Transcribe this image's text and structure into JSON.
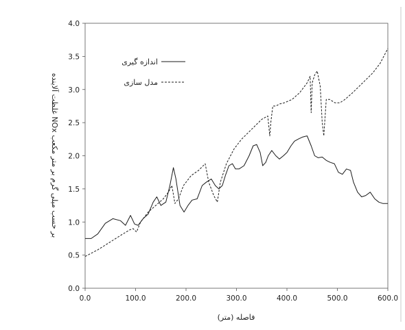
{
  "chart_data": {
    "type": "line",
    "title": "",
    "xlabel": "فاصله (متر)",
    "ylabel": "غلظت آلاینده NOx بر حسب میلی گرم بر متر مکعب",
    "xlim": [
      0,
      600
    ],
    "ylim": [
      0,
      4
    ],
    "x_ticks": [
      "0.0",
      "100.0",
      "200.0",
      "300.0",
      "400.0",
      "500.0",
      "600.0"
    ],
    "y_ticks": [
      "0.0",
      "0.5",
      "1.0",
      "1.5",
      "2.0",
      "2.5",
      "3.0",
      "3.5",
      "4.0"
    ],
    "grid": false,
    "legend_position": "top-center",
    "series": [
      {
        "name": "اندازه گیری",
        "style": "solid",
        "color": "#1a1a1a",
        "x": [
          0,
          12,
          25,
          40,
          55,
          70,
          80,
          90,
          98,
          105,
          115,
          125,
          135,
          142,
          150,
          160,
          168,
          175,
          180,
          188,
          196,
          204,
          212,
          222,
          232,
          240,
          250,
          258,
          265,
          272,
          278,
          285,
          292,
          298,
          305,
          315,
          325,
          333,
          340,
          347,
          352,
          358,
          363,
          370,
          378,
          385,
          393,
          400,
          408,
          415,
          422,
          430,
          440,
          448,
          455,
          462,
          470,
          478,
          486,
          494,
          502,
          510,
          518,
          526,
          532,
          540,
          548,
          556,
          565,
          574,
          582,
          590,
          600
        ],
        "y": [
          0.75,
          0.75,
          0.82,
          0.98,
          1.05,
          1.02,
          0.95,
          1.1,
          0.97,
          0.95,
          1.05,
          1.12,
          1.3,
          1.38,
          1.25,
          1.3,
          1.55,
          1.82,
          1.65,
          1.25,
          1.15,
          1.25,
          1.33,
          1.35,
          1.55,
          1.6,
          1.65,
          1.55,
          1.5,
          1.55,
          1.7,
          1.85,
          1.88,
          1.8,
          1.8,
          1.85,
          2.0,
          2.15,
          2.17,
          2.05,
          1.85,
          1.9,
          2.0,
          2.08,
          2.0,
          1.95,
          2.0,
          2.05,
          2.15,
          2.22,
          2.25,
          2.28,
          2.3,
          2.15,
          2.0,
          1.97,
          1.98,
          1.93,
          1.9,
          1.88,
          1.75,
          1.72,
          1.8,
          1.78,
          1.6,
          1.45,
          1.38,
          1.4,
          1.45,
          1.35,
          1.3,
          1.28,
          1.28
        ]
      },
      {
        "name": "مدل سازی",
        "style": "dashed",
        "color": "#1a1a1a",
        "x": [
          0,
          25,
          50,
          75,
          88,
          95,
          102,
          110,
          125,
          140,
          155,
          165,
          172,
          178,
          185,
          195,
          210,
          225,
          238,
          245,
          255,
          262,
          268,
          280,
          295,
          310,
          330,
          350,
          362,
          366,
          368,
          372,
          378,
          385,
          395,
          410,
          425,
          440,
          446,
          448,
          450,
          455,
          460,
          466,
          470,
          473,
          478,
          485,
          495,
          505,
          515,
          530,
          550,
          570,
          585,
          600
        ],
        "y": [
          0.48,
          0.58,
          0.7,
          0.82,
          0.88,
          0.9,
          0.85,
          1.0,
          1.15,
          1.25,
          1.35,
          1.45,
          1.55,
          1.28,
          1.35,
          1.55,
          1.7,
          1.78,
          1.88,
          1.6,
          1.4,
          1.3,
          1.6,
          1.88,
          2.1,
          2.25,
          2.4,
          2.55,
          2.6,
          2.3,
          2.5,
          2.75,
          2.75,
          2.78,
          2.8,
          2.85,
          2.95,
          3.1,
          3.2,
          2.65,
          3.1,
          3.22,
          3.28,
          3.05,
          2.5,
          2.3,
          2.85,
          2.85,
          2.8,
          2.8,
          2.85,
          2.95,
          3.1,
          3.25,
          3.4,
          3.62
        ]
      }
    ]
  }
}
